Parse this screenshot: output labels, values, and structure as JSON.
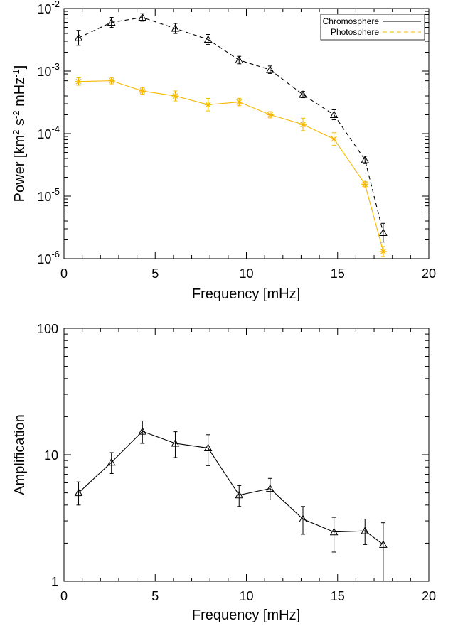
{
  "chart_data": [
    {
      "type": "line",
      "xlabel": "Frequency [mHz]",
      "ylabel_parts": {
        "base": "Power [km",
        "sup1": "2",
        "mid1": " s",
        "sup2": "-2",
        "mid2": " mHz",
        "sup3": "-1",
        "end": "]"
      },
      "xlim": [
        0,
        20
      ],
      "ylim": [
        1e-06,
        0.01
      ],
      "yscale": "log",
      "x_ticks": [
        "0",
        "5",
        "10",
        "15",
        "20"
      ],
      "y_ticks": [
        {
          "base": "10",
          "exp": "-6",
          "value": 1e-06
        },
        {
          "base": "10",
          "exp": "-5",
          "value": 1e-05
        },
        {
          "base": "10",
          "exp": "-4",
          "value": 0.0001
        },
        {
          "base": "10",
          "exp": "-3",
          "value": 0.001
        },
        {
          "base": "10",
          "exp": "-2",
          "value": 0.01
        }
      ],
      "x": [
        0.8,
        2.6,
        4.3,
        6.1,
        7.9,
        9.6,
        11.3,
        13.1,
        14.8,
        16.5,
        17.5
      ],
      "legend_position": "top-right",
      "series": [
        {
          "name": "Chromosphere",
          "color": "#000000",
          "marker": "triangle",
          "line": "dashed",
          "values": [
            0.0034,
            0.006,
            0.0072,
            0.0048,
            0.0032,
            0.0015,
            0.00105,
            0.00042,
            0.0002,
            3.8e-05,
            2.6e-06
          ],
          "errors": [
            0.12,
            0.08,
            0.06,
            0.08,
            0.08,
            0.06,
            0.06,
            0.05,
            0.08,
            0.06,
            0.15
          ]
        },
        {
          "name": "Photosphere",
          "color": "#f5b800",
          "marker": "asterisk",
          "line": "solid",
          "values": [
            0.00068,
            0.0007,
            0.00048,
            0.0004,
            0.00029,
            0.00032,
            0.0002,
            0.00014,
            8.2e-05,
            1.55e-05,
            1.3e-06
          ],
          "errors": [
            0.06,
            0.05,
            0.05,
            0.08,
            0.1,
            0.06,
            0.05,
            0.1,
            0.1,
            0.04,
            0.08
          ]
        }
      ],
      "legend_line_styles": {
        "Chromosphere": "solid",
        "Photosphere": "dashed"
      }
    },
    {
      "type": "line",
      "xlabel": "Frequency [mHz]",
      "ylabel": "Amplification",
      "xlim": [
        0,
        20
      ],
      "ylim": [
        1,
        100
      ],
      "yscale": "log",
      "x_ticks": [
        "0",
        "5",
        "10",
        "15",
        "20"
      ],
      "y_ticks": [
        {
          "label": "1",
          "value": 1
        },
        {
          "label": "10",
          "value": 10
        },
        {
          "label": "100",
          "value": 100
        }
      ],
      "x": [
        0.8,
        2.6,
        4.3,
        6.1,
        7.9,
        9.6,
        11.3,
        13.1,
        14.8,
        16.5,
        17.5
      ],
      "series": [
        {
          "color": "#000000",
          "marker": "triangle",
          "line": "solid",
          "values": [
            5.0,
            8.7,
            15.3,
            12.3,
            11.3,
            4.8,
            5.4,
            3.1,
            2.45,
            2.5,
            1.95
          ],
          "err_low": [
            4.0,
            7.1,
            12.3,
            9.5,
            8.2,
            3.9,
            4.4,
            2.35,
            1.7,
            1.95,
            1.0
          ],
          "err_high": [
            6.1,
            10.4,
            18.5,
            15.2,
            14.4,
            5.7,
            6.5,
            3.9,
            3.2,
            3.1,
            2.9
          ]
        }
      ]
    }
  ]
}
